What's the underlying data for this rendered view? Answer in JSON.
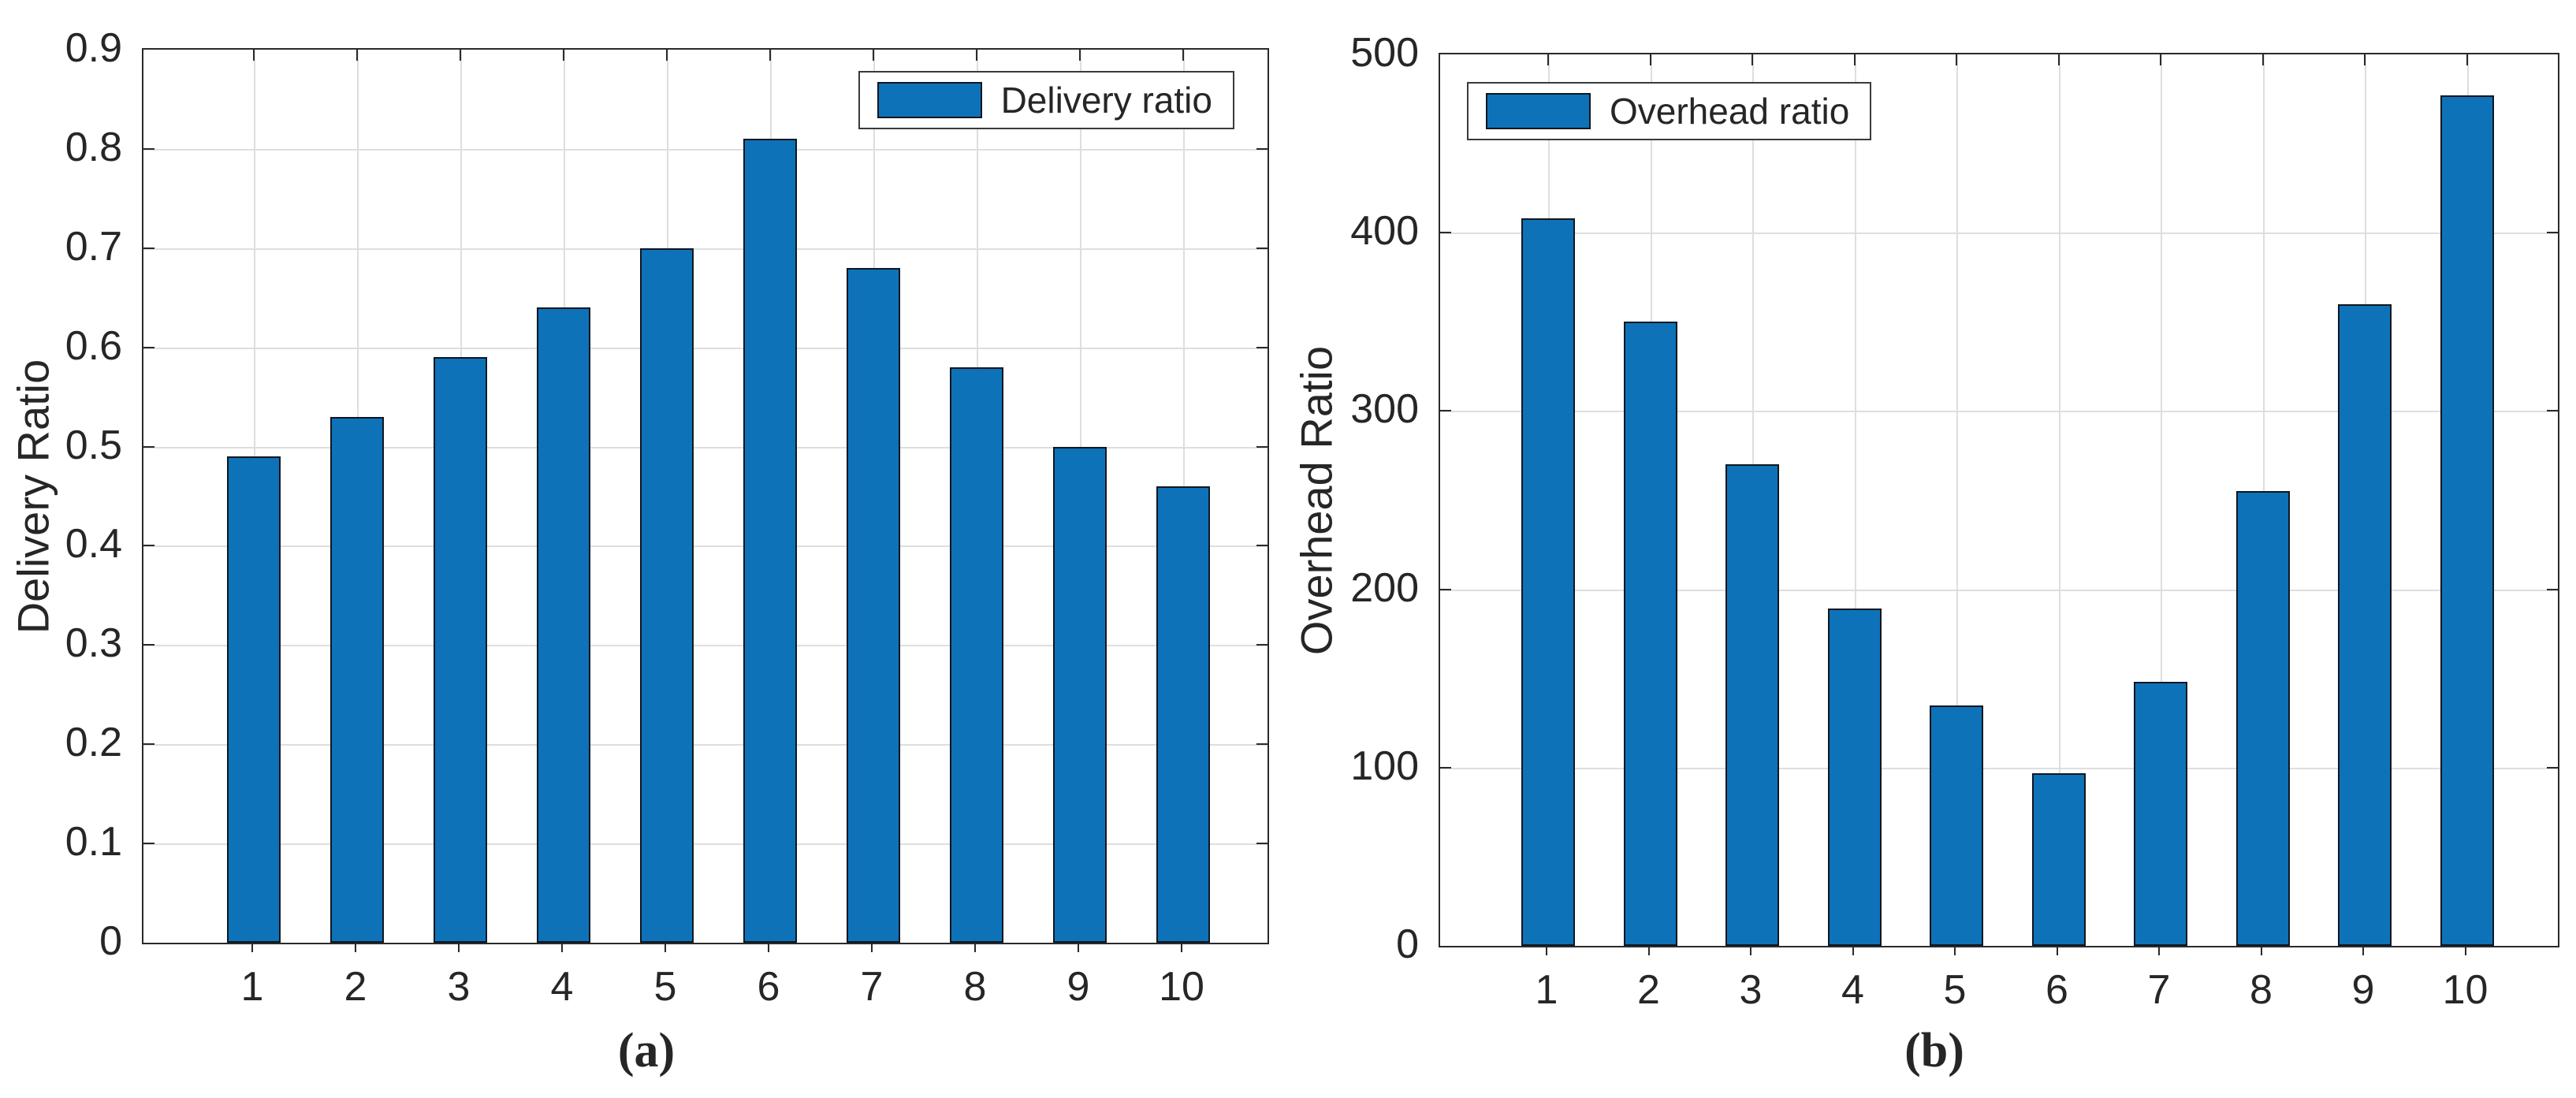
{
  "figure": {
    "background": "#ffffff"
  },
  "colors": {
    "bar_fill": "#0e72b8",
    "bar_edge": "#0f1720",
    "grid": "#dedede",
    "axis": "#2a2a2a",
    "text": "#262626"
  },
  "chart_data": [
    {
      "type": "bar",
      "panel_label": "(a)",
      "title": "",
      "xlabel": "",
      "ylabel": "Delivery Ratio",
      "legend": "Delivery ratio",
      "legend_position": "top-right",
      "categories": [
        "1",
        "2",
        "3",
        "4",
        "5",
        "6",
        "7",
        "8",
        "9",
        "10"
      ],
      "values": [
        0.49,
        0.53,
        0.59,
        0.64,
        0.7,
        0.81,
        0.68,
        0.58,
        0.5,
        0.46
      ],
      "ylim": [
        0,
        0.9
      ],
      "yticks": [
        0,
        0.1,
        0.2,
        0.3,
        0.4,
        0.5,
        0.6,
        0.7,
        0.8,
        0.9
      ],
      "grid": true
    },
    {
      "type": "bar",
      "panel_label": "(b)",
      "title": "",
      "xlabel": "",
      "ylabel": "Overhead Ratio",
      "legend": "Overhead ratio",
      "legend_position": "top-left",
      "categories": [
        "1",
        "2",
        "3",
        "4",
        "5",
        "6",
        "7",
        "8",
        "9",
        "10"
      ],
      "values": [
        408,
        350,
        270,
        189,
        135,
        97,
        148,
        255,
        360,
        477
      ],
      "ylim": [
        0,
        500
      ],
      "yticks": [
        0,
        100,
        200,
        300,
        400,
        500
      ],
      "grid": true
    }
  ]
}
